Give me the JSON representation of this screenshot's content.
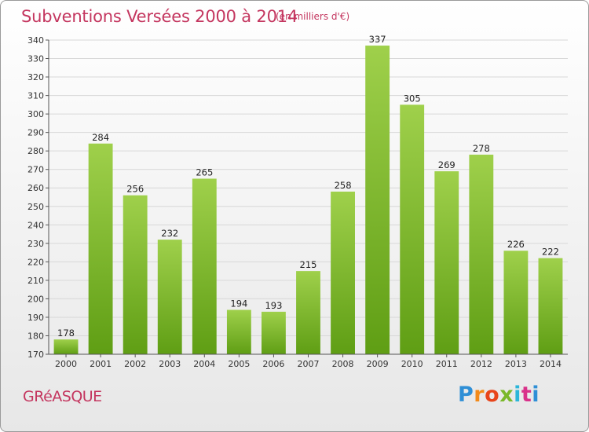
{
  "header": {
    "title": "Subventions Versées 2000 à 2014",
    "subtitle": "(en milliers d'€)"
  },
  "commune": "GRéASQUE",
  "logo": {
    "text": "Proxiti"
  },
  "colors": {
    "bar_top": "#9fd04b",
    "bar_bottom": "#5f9e14",
    "title": "#c4365f",
    "grid": "#d8d8d8"
  },
  "chart_data": {
    "type": "bar",
    "title": "Subventions Versées 2000 à 2014",
    "subtitle": "(en milliers d'€)",
    "xlabel": "",
    "ylabel": "",
    "categories": [
      "2000",
      "2001",
      "2002",
      "2003",
      "2004",
      "2005",
      "2006",
      "2007",
      "2008",
      "2009",
      "2010",
      "2011",
      "2012",
      "2013",
      "2014"
    ],
    "values": [
      178,
      284,
      256,
      232,
      265,
      194,
      193,
      215,
      258,
      337,
      305,
      269,
      278,
      226,
      222
    ],
    "ylim": [
      170,
      340
    ],
    "yticks": [
      170,
      180,
      190,
      200,
      210,
      220,
      230,
      240,
      250,
      260,
      270,
      280,
      290,
      300,
      310,
      320,
      330,
      340
    ],
    "grid": true,
    "data_labels": true
  }
}
